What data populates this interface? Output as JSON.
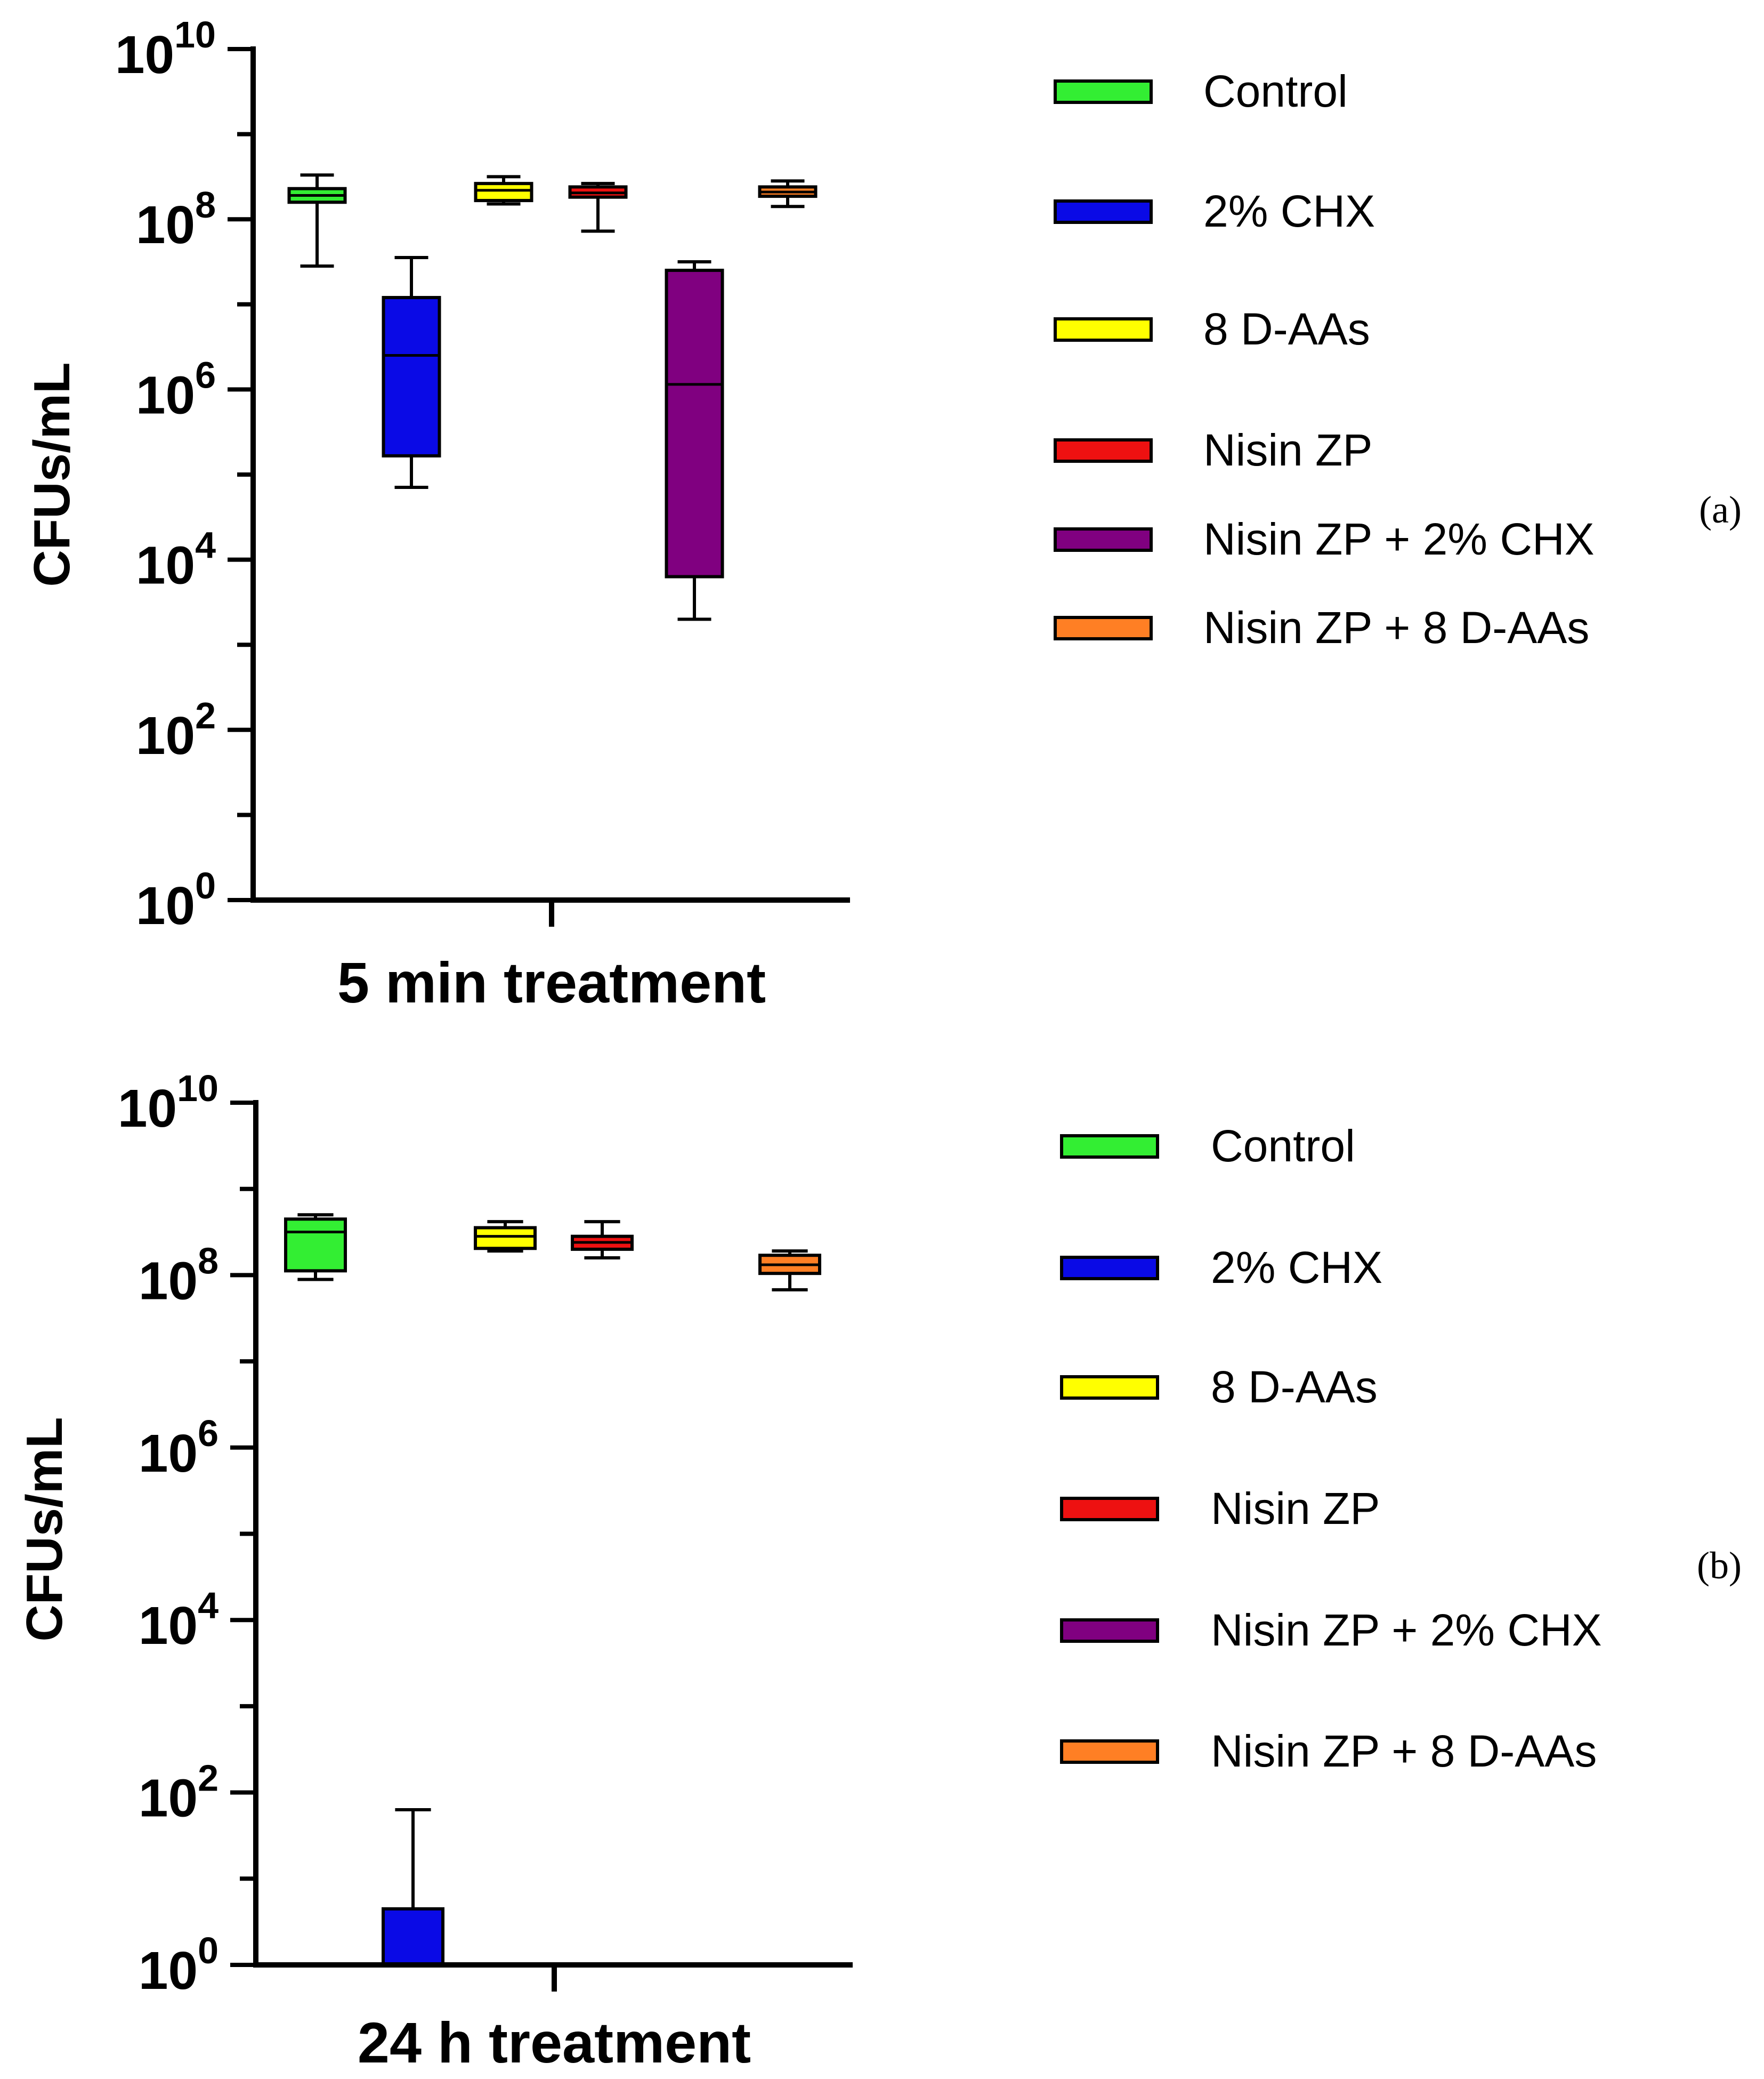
{
  "chart_data": [
    {
      "type": "box",
      "panel_label": "(a)",
      "xlabel": "5 min treatment",
      "ylabel": "CFUs/mL",
      "yscale": "log10",
      "ylim_exponents": [
        0,
        10
      ],
      "y_ticks": [
        {
          "base": "10",
          "exp": "0"
        },
        {
          "base": "10",
          "exp": "2"
        },
        {
          "base": "10",
          "exp": "4"
        },
        {
          "base": "10",
          "exp": "6"
        },
        {
          "base": "10",
          "exp": "8"
        },
        {
          "base": "10",
          "exp": "10"
        }
      ],
      "series": [
        {
          "name": "Control",
          "color": "#33ee33",
          "log10": {
            "min": 7.45,
            "q1": 8.2,
            "median": 8.28,
            "q3": 8.36,
            "max": 8.52
          }
        },
        {
          "name": "2% CHX",
          "color": "#0a0ae6",
          "log10": {
            "min": 4.85,
            "q1": 5.22,
            "median": 6.4,
            "q3": 7.08,
            "max": 7.55
          }
        },
        {
          "name": "8 D-AAs",
          "color": "#ffff00",
          "log10": {
            "min": 8.18,
            "q1": 8.22,
            "median": 8.34,
            "q3": 8.42,
            "max": 8.5
          }
        },
        {
          "name": "Nisin ZP",
          "color": "#ee1111",
          "log10": {
            "min": 7.86,
            "q1": 8.26,
            "median": 8.31,
            "q3": 8.38,
            "max": 8.42
          }
        },
        {
          "name": "Nisin ZP + 2% CHX",
          "color": "#800080",
          "log10": {
            "min": 3.3,
            "q1": 3.8,
            "median": 6.06,
            "q3": 7.4,
            "max": 7.5
          }
        },
        {
          "name": "Nisin ZP + 8 D-AAs",
          "color": "#ff7f24",
          "log10": {
            "min": 8.15,
            "q1": 8.27,
            "median": 8.32,
            "q3": 8.38,
            "max": 8.45
          }
        }
      ]
    },
    {
      "type": "box",
      "panel_label": "(b)",
      "xlabel": "24 h treatment",
      "ylabel": "CFUs/mL",
      "yscale": "log10",
      "ylim_exponents": [
        0,
        10
      ],
      "y_ticks": [
        {
          "base": "10",
          "exp": "0"
        },
        {
          "base": "10",
          "exp": "2"
        },
        {
          "base": "10",
          "exp": "4"
        },
        {
          "base": "10",
          "exp": "6"
        },
        {
          "base": "10",
          "exp": "8"
        },
        {
          "base": "10",
          "exp": "10"
        }
      ],
      "series": [
        {
          "name": "Control",
          "color": "#33ee33",
          "log10": {
            "min": 7.95,
            "q1": 8.05,
            "median": 8.5,
            "q3": 8.65,
            "max": 8.7
          }
        },
        {
          "name": "2% CHX",
          "color": "#0a0ae6",
          "log10": {
            "min": 0.0,
            "q1": 0.0,
            "median": 0.0,
            "q3": 0.65,
            "max": 1.8
          }
        },
        {
          "name": "8 D-AAs",
          "color": "#ffff00",
          "log10": {
            "min": 8.28,
            "q1": 8.31,
            "median": 8.45,
            "q3": 8.55,
            "max": 8.62
          }
        },
        {
          "name": "Nisin ZP",
          "color": "#ee1111",
          "log10": {
            "min": 8.2,
            "q1": 8.3,
            "median": 8.38,
            "q3": 8.45,
            "max": 8.62
          }
        },
        {
          "name": "Nisin ZP + 2% CHX",
          "color": "#800080",
          "log10": null
        },
        {
          "name": "Nisin ZP + 8 D-AAs",
          "color": "#ff7f24",
          "log10": {
            "min": 7.83,
            "q1": 8.02,
            "median": 8.12,
            "q3": 8.23,
            "max": 8.28
          }
        }
      ]
    }
  ]
}
